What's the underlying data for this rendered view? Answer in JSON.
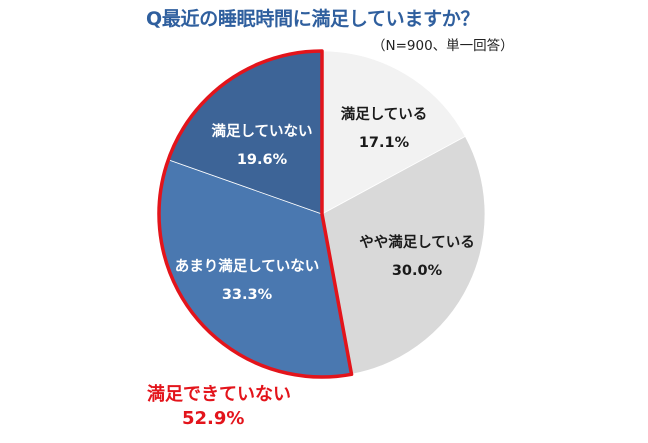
{
  "header": {
    "title": "Q最近の睡眠時間に満足していますか？",
    "note": "（N=900、単一回答）"
  },
  "chart_data": {
    "type": "pie",
    "title": "Q最近の睡眠時間に満足していますか？",
    "subtitle": "（N=900、単一回答）",
    "start_angle": "12 o'clock",
    "direction": "clockwise",
    "slices": [
      {
        "label": "満足している",
        "value": 17.1,
        "display": "17.1%",
        "color": "#f2f2f2",
        "text_color": "#1a1a1a"
      },
      {
        "label": "やや満足している",
        "value": 30.0,
        "display": "30.0%",
        "color": "#d9d9d9",
        "text_color": "#1a1a1a"
      },
      {
        "label": "あまり満足していない",
        "value": 33.3,
        "display": "33.3%",
        "color": "#4a78b0",
        "text_color": "#ffffff"
      },
      {
        "label": "満足していない",
        "value": 19.6,
        "display": "19.6%",
        "color": "#3d6497",
        "text_color": "#ffffff"
      }
    ],
    "highlight": {
      "label": "満足できていない",
      "value": 52.9,
      "display": "52.9%",
      "includes": [
        "あまり満足していない",
        "満足していない"
      ],
      "outline_color": "#e3141b"
    },
    "legend": "none (labels inside slices)"
  },
  "callout": {
    "label": "満足できていない",
    "value": "52.9%"
  }
}
